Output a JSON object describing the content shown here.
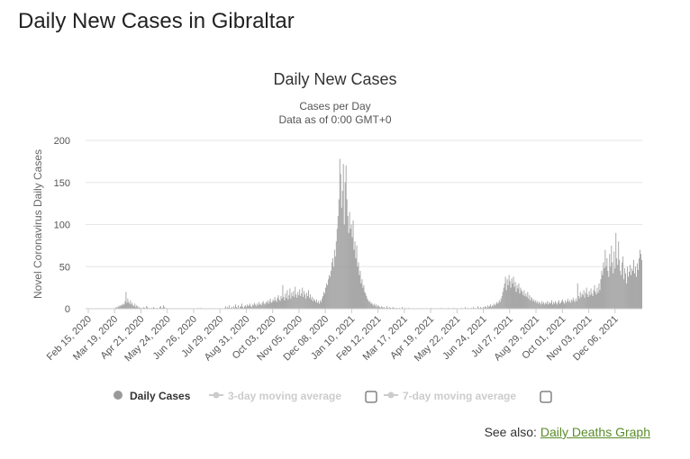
{
  "page": {
    "title": "Daily New Cases in Gibraltar"
  },
  "see_also": {
    "label": "See also:",
    "link_text": "Daily Deaths Graph"
  },
  "chart_data": {
    "type": "bar",
    "title": "Daily New Cases",
    "subtitle_lines": [
      "Cases per Day",
      "Data as of 0:00 GMT+0"
    ],
    "ylabel": "Novel Coronavirus Daily Cases",
    "xlabel": "",
    "ylim": [
      0,
      200
    ],
    "yticks": [
      0,
      50,
      100,
      150,
      200
    ],
    "grid": true,
    "x_start": "2020-02-15",
    "x_end": "2021-12-31",
    "x_tick_labels": [
      "Feb 15, 2020",
      "Mar 19, 2020",
      "Apr 21, 2020",
      "May 24, 2020",
      "Jun 26, 2020",
      "Jul 29, 2020",
      "Aug 31, 2020",
      "Oct 03, 2020",
      "Nov 05, 2020",
      "Dec 08, 2020",
      "Jan 10, 2021",
      "Feb 12, 2021",
      "Mar 17, 2021",
      "Apr 19, 2021",
      "May 22, 2021",
      "Jun 24, 2021",
      "Jul 27, 2021",
      "Aug 29, 2021",
      "Oct 01, 2021",
      "Nov 03, 2021",
      "Dec 06, 2021"
    ],
    "bar_color": "#999999",
    "legend": {
      "placement": "bottom",
      "items": [
        {
          "name": "Daily Cases",
          "color": "#999999",
          "active": true,
          "checkbox": false
        },
        {
          "name": "3-day moving average",
          "color": "#cccccc",
          "active": false,
          "checkbox": true
        },
        {
          "name": "7-day moving average",
          "color": "#cccccc",
          "active": false,
          "checkbox": true
        }
      ]
    },
    "series": [
      {
        "name": "Daily Cases",
        "values": [
          0,
          0,
          0,
          0,
          0,
          0,
          0,
          0,
          0,
          0,
          0,
          0,
          0,
          0,
          0,
          0,
          0,
          0,
          0,
          0,
          0,
          0,
          0,
          0,
          0,
          0,
          0,
          0,
          0,
          0,
          0,
          0,
          0,
          1,
          2,
          1,
          3,
          2,
          4,
          3,
          5,
          4,
          6,
          5,
          9,
          20,
          7,
          12,
          8,
          6,
          10,
          5,
          7,
          4,
          3,
          6,
          2,
          4,
          3,
          1,
          2,
          1,
          0,
          1,
          0,
          2,
          1,
          0,
          3,
          2,
          0,
          1,
          0,
          0,
          1,
          0,
          2,
          1,
          0,
          0,
          1,
          0,
          0,
          2,
          3,
          0,
          1,
          4,
          2,
          0,
          1,
          0,
          0,
          0,
          0,
          0,
          0,
          0,
          0,
          0,
          0,
          0,
          0,
          0,
          0,
          0,
          0,
          0,
          0,
          0,
          0,
          0,
          0,
          0,
          0,
          0,
          0,
          0,
          0,
          0,
          0,
          0,
          0,
          0,
          0,
          0,
          1,
          0,
          0,
          1,
          0,
          0,
          0,
          0,
          0,
          0,
          0,
          0,
          0,
          0,
          0,
          0,
          0,
          0,
          0,
          0,
          0,
          0,
          0,
          0,
          0,
          0,
          0,
          0,
          0,
          0,
          1,
          3,
          0,
          2,
          1,
          4,
          0,
          1,
          2,
          0,
          3,
          1,
          5,
          2,
          1,
          4,
          0,
          2,
          3,
          6,
          2,
          1,
          3,
          4,
          2,
          5,
          3,
          4,
          6,
          3,
          2,
          5,
          4,
          7,
          5,
          3,
          6,
          4,
          8,
          5,
          6,
          4,
          7,
          9,
          6,
          5,
          8,
          7,
          10,
          6,
          9,
          12,
          7,
          8,
          11,
          9,
          14,
          10,
          8,
          13,
          16,
          11,
          9,
          15,
          12,
          28,
          14,
          10,
          18,
          13,
          22,
          11,
          16,
          24,
          12,
          19,
          15,
          21,
          14,
          26,
          17,
          13,
          20,
          16,
          23,
          15,
          18,
          25,
          14,
          21,
          17,
          12,
          19,
          15,
          22,
          13,
          17,
          11,
          14,
          9,
          12,
          10,
          8,
          11,
          7,
          9,
          6,
          10,
          8,
          12,
          15,
          20,
          18,
          25,
          30,
          28,
          35,
          40,
          38,
          45,
          55,
          60,
          50,
          70,
          62,
          80,
          95,
          110,
          130,
          178,
          160,
          120,
          140,
          172,
          100,
          150,
          170,
          130,
          110,
          90,
          115,
          95,
          100,
          85,
          105,
          70,
          80,
          60,
          75,
          50,
          55,
          40,
          45,
          30,
          35,
          25,
          28,
          20,
          18,
          15,
          12,
          10,
          8,
          9,
          6,
          7,
          5,
          4,
          6,
          3,
          5,
          2,
          4,
          3,
          2,
          1,
          3,
          2,
          1,
          2,
          0,
          1,
          3,
          1,
          0,
          2,
          1,
          0,
          1,
          2,
          0,
          1,
          0,
          1,
          0,
          0,
          1,
          0,
          0,
          2,
          0,
          0,
          1,
          0,
          0,
          0,
          1,
          0,
          0,
          0,
          0,
          0,
          0,
          0,
          0,
          0,
          0,
          0,
          0,
          0,
          0,
          0,
          0,
          0,
          0,
          0,
          0,
          0,
          0,
          0,
          0,
          0,
          1,
          0,
          0,
          0,
          0,
          0,
          0,
          0,
          0,
          0,
          0,
          1,
          0,
          0,
          0,
          0,
          0,
          0,
          0,
          1,
          0,
          0,
          0,
          0,
          0,
          1,
          0,
          0,
          0,
          0,
          0,
          0,
          0,
          0,
          1,
          0,
          0,
          0,
          2,
          0,
          0,
          1,
          0,
          0,
          0,
          1,
          0,
          2,
          0,
          1,
          0,
          0,
          3,
          1,
          0,
          2,
          1,
          0,
          2,
          1,
          3,
          2,
          1,
          4,
          2,
          3,
          5,
          2,
          4,
          3,
          6,
          4,
          5,
          8,
          6,
          7,
          10,
          8,
          12,
          15,
          20,
          25,
          30,
          38,
          22,
          35,
          28,
          40,
          33,
          25,
          36,
          30,
          38,
          26,
          32,
          20,
          28,
          24,
          30,
          18,
          25,
          22,
          20,
          16,
          22,
          15,
          18,
          14,
          20,
          12,
          16,
          10,
          14,
          12,
          9,
          11,
          8,
          10,
          7,
          9,
          6,
          8,
          7,
          5,
          9,
          6,
          8,
          5,
          7,
          6,
          9,
          5,
          8,
          6,
          7,
          10,
          5,
          8,
          6,
          9,
          7,
          5,
          8,
          10,
          6,
          7,
          9,
          11,
          8,
          6,
          10,
          7,
          9,
          12,
          8,
          10,
          7,
          11,
          9,
          13,
          10,
          8,
          12,
          9,
          30,
          15,
          12,
          20,
          14,
          18,
          16,
          22,
          13,
          19,
          25,
          17,
          14,
          21,
          16,
          24,
          18,
          15,
          22,
          28,
          20,
          17,
          25,
          19,
          30,
          22,
          35,
          45,
          40,
          55,
          48,
          70,
          50,
          60,
          45,
          38,
          65,
          50,
          75,
          55,
          42,
          68,
          48,
          90,
          60,
          52,
          80,
          58,
          45,
          40,
          55,
          62,
          35,
          48,
          42,
          30,
          50,
          38,
          44,
          52,
          40,
          48,
          45,
          58,
          42,
          50,
          38,
          54,
          46,
          60,
          70,
          65,
          58
        ]
      }
    ]
  }
}
